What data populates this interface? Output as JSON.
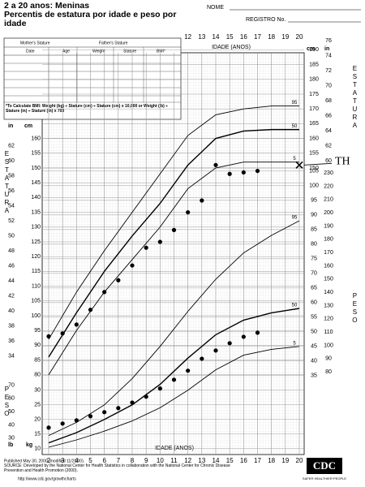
{
  "header": {
    "name": "NOME",
    "record": "REGISTRO No."
  },
  "form": {
    "mother": "Mother's Stature",
    "father": "Father's Stature",
    "columns": [
      "Date",
      "Age",
      "Weight",
      "Stature",
      "BMI*"
    ],
    "note": "*To Calculate BMI: Weight (kg) ÷ Stature (cm) ÷ Stature (cm) x 10,000 or Weight (lb) ÷ Stature (in) ÷ Stature (in) x 703"
  },
  "footer": {
    "published": "Published May 30, 2000 (modified 11/21/00).",
    "source": "SOURCE: Developed by the National Center for Health Statistics in collaboration with the National Center for Chronic Disease Prevention and Health Promotion (2000).",
    "url": "http://www.cdc.gov/growthcharts",
    "logo": "CDC",
    "motto": "SAFER·HEALTHIER·PEOPLE"
  },
  "chart_data": {
    "type": "line",
    "title": "2 a 20 anos: Meninas",
    "subtitle": "Percentis de estatura por idade e peso por idade",
    "xlabel": "IDADE (ANOS)",
    "ylabel": "ESTATURA",
    "y2label": "PESO",
    "y_unit": "cm",
    "y_unit_in": "in",
    "y2_unit": "kg",
    "y2_unit_lb": "lb",
    "xlim": [
      2,
      20
    ],
    "xticks": [
      2,
      3,
      4,
      5,
      6,
      7,
      8,
      9,
      10,
      11,
      12,
      13,
      14,
      15,
      16,
      17,
      18,
      19,
      20
    ],
    "ylim": [
      53,
      189
    ],
    "yticks": [
      80,
      85,
      90,
      95,
      100,
      105,
      110,
      115,
      120,
      125,
      130,
      135,
      140,
      145,
      150,
      155,
      160
    ],
    "yticks_right": [
      150,
      155,
      160,
      165,
      170,
      175,
      180,
      185,
      190
    ],
    "y2lim": [
      8,
      145.5
    ],
    "y2ticks": [
      35,
      40,
      45,
      50,
      55,
      60,
      65,
      70,
      75,
      80,
      85,
      90,
      95,
      100,
      105
    ],
    "y2ticks_left": [
      10,
      15,
      20,
      25,
      30
    ],
    "in_ticks_left": [
      34,
      36,
      38,
      40,
      42,
      44,
      46,
      48,
      50,
      52,
      54,
      56,
      58,
      60,
      62
    ],
    "in_ticks_right": [
      60,
      62,
      64,
      66,
      68,
      70,
      72,
      74,
      76
    ],
    "lb_ticks_right": [
      80,
      90,
      100,
      110,
      120,
      130,
      140,
      150,
      160,
      170,
      180,
      190,
      200,
      210,
      220,
      230
    ],
    "lb_ticks_left": [
      30,
      40,
      50,
      60,
      70
    ],
    "grid": true,
    "series": [
      {
        "name": "95",
        "axis": "y",
        "color": "#000",
        "x": [
          2,
          4,
          6,
          8,
          10,
          12,
          14,
          16,
          18,
          20
        ],
        "values": [
          92,
          108,
          122,
          135,
          148,
          161,
          168,
          170,
          171,
          171
        ]
      },
      {
        "name": "50",
        "axis": "y",
        "color": "#000",
        "x": [
          2,
          4,
          6,
          8,
          10,
          12,
          14,
          16,
          18,
          20
        ],
        "values": [
          86,
          101,
          115,
          127,
          138,
          151,
          160,
          162.5,
          163,
          163
        ]
      },
      {
        "name": "5",
        "axis": "y",
        "color": "#000",
        "x": [
          2,
          4,
          6,
          8,
          10,
          12,
          14,
          16,
          18,
          20
        ],
        "values": [
          80,
          95,
          108,
          119,
          130,
          143,
          150,
          152,
          152,
          152
        ]
      },
      {
        "name": "95",
        "axis": "y2",
        "color": "#000",
        "x": [
          2,
          4,
          6,
          8,
          10,
          12,
          14,
          16,
          18,
          20
        ],
        "values": [
          14.5,
          19,
          25,
          34,
          45,
          57,
          68,
          77,
          83,
          88
        ]
      },
      {
        "name": "50",
        "axis": "y2",
        "color": "#000",
        "x": [
          2,
          4,
          6,
          8,
          10,
          12,
          14,
          16,
          18,
          20
        ],
        "values": [
          12,
          15.5,
          20,
          25,
          32,
          41,
          49,
          54,
          56.5,
          58
        ]
      },
      {
        "name": "5",
        "axis": "y2",
        "color": "#000",
        "x": [
          2,
          4,
          6,
          8,
          10,
          12,
          14,
          16,
          18,
          20
        ],
        "values": [
          10.5,
          13,
          16,
          19.5,
          24,
          30,
          37,
          42,
          44,
          45
        ]
      },
      {
        "axis": "y",
        "marker": true,
        "color": "#000",
        "x": [
          2,
          3,
          4,
          5,
          6,
          7,
          8,
          9,
          10,
          11,
          12,
          13,
          14,
          15,
          16,
          17
        ],
        "values": [
          93,
          94,
          97,
          102,
          108,
          112,
          117,
          123,
          125,
          129,
          135,
          139,
          151,
          148,
          148.5,
          149
        ]
      },
      {
        "axis": "y2",
        "marker": true,
        "color": "#000",
        "x": [
          2,
          3,
          4,
          5,
          6,
          7,
          8,
          9,
          10,
          11,
          12,
          13,
          14,
          15,
          16,
          17
        ],
        "values": [
          17.2,
          18.6,
          19.7,
          21.1,
          22.5,
          23.9,
          25.8,
          27.8,
          30.6,
          33.6,
          36.7,
          40.8,
          43.6,
          46.1,
          48.3,
          49.7
        ]
      }
    ],
    "annotations": [
      {
        "text": "TH",
        "x": 20,
        "y": 151
      }
    ]
  }
}
